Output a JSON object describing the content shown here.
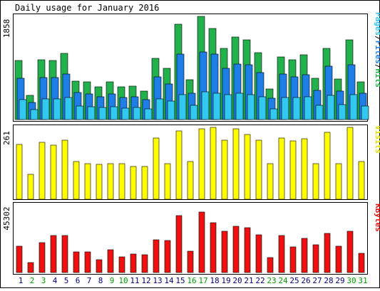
{
  "chart_data": {
    "type": "bar",
    "title": "Daily usage for January 2016",
    "categories": [
      "1",
      "2",
      "3",
      "4",
      "5",
      "6",
      "7",
      "8",
      "9",
      "10",
      "11",
      "12",
      "13",
      "14",
      "15",
      "16",
      "17",
      "18",
      "19",
      "20",
      "21",
      "22",
      "23",
      "24",
      "25",
      "26",
      "27",
      "28",
      "29",
      "30",
      "31"
    ],
    "weekend_days": [
      "2",
      "3",
      "9",
      "10",
      "16",
      "17",
      "23",
      "24",
      "30",
      "31"
    ],
    "weekend_color": "#00a000",
    "weekday_color": "#000080",
    "panels": [
      {
        "id": "hits-panel",
        "max_label": "1858",
        "ymax": 1858,
        "series": [
          {
            "name": "Hits",
            "color": "#22b14c",
            "values": [
              1050,
              430,
              1070,
              1060,
              1180,
              690,
              670,
              590,
              670,
              580,
              600,
              510,
              1090,
              920,
              1700,
              710,
              1840,
              1630,
              1270,
              1480,
              1430,
              1200,
              550,
              1120,
              1070,
              1160,
              740,
              1270,
              730,
              1420,
              680
            ]
          },
          {
            "name": "Files",
            "color": "#1f7ee6",
            "values": [
              740,
              310,
              750,
              750,
              810,
              480,
              460,
              410,
              460,
              400,
              410,
              350,
              760,
              630,
              1170,
              470,
              1210,
              1170,
              920,
              990,
              980,
              840,
              380,
              810,
              760,
              800,
              520,
              960,
              510,
              980,
              470
            ]
          },
          {
            "name": "Pages",
            "color": "#33c8f0",
            "values": [
              360,
              180,
              370,
              370,
              400,
              240,
              230,
              220,
              230,
              200,
              210,
              190,
              370,
              330,
              440,
              250,
              500,
              470,
              440,
              470,
              450,
              410,
              190,
              400,
              400,
              410,
              260,
              430,
              270,
              450,
              240
            ]
          }
        ],
        "legend": [
          "Pages",
          "Files",
          "Hits"
        ]
      },
      {
        "id": "visits-panel",
        "max_label": "261",
        "ymax": 261,
        "series": [
          {
            "name": "Visits",
            "color": "#ffff00",
            "values": [
              200,
              90,
              208,
              197,
              215,
              136,
              128,
              127,
              130,
              128,
              120,
              118,
              222,
              129,
              247,
              137,
              255,
              261,
              215,
              256,
              236,
              214,
              128,
              222,
              212,
              220,
              128,
              243,
              130,
              261,
              137
            ]
          }
        ],
        "legend": [
          "Visits"
        ]
      },
      {
        "id": "kbytes-panel",
        "max_label": "45302",
        "ymax": 45302,
        "series": [
          {
            "name": "KBytes",
            "color": "#ee1111",
            "values": [
              17500,
              6500,
              19900,
              24700,
              25000,
              13600,
              13900,
              8700,
              15100,
              10600,
              12600,
              12100,
              22000,
              21400,
              38000,
              14400,
              40600,
              33400,
              27700,
              31000,
              30000,
              25300,
              9800,
              24700,
              17300,
              22700,
              18700,
              26000,
              17600,
              27600,
              12700
            ]
          }
        ],
        "legend": [
          "KBytes"
        ]
      }
    ]
  }
}
